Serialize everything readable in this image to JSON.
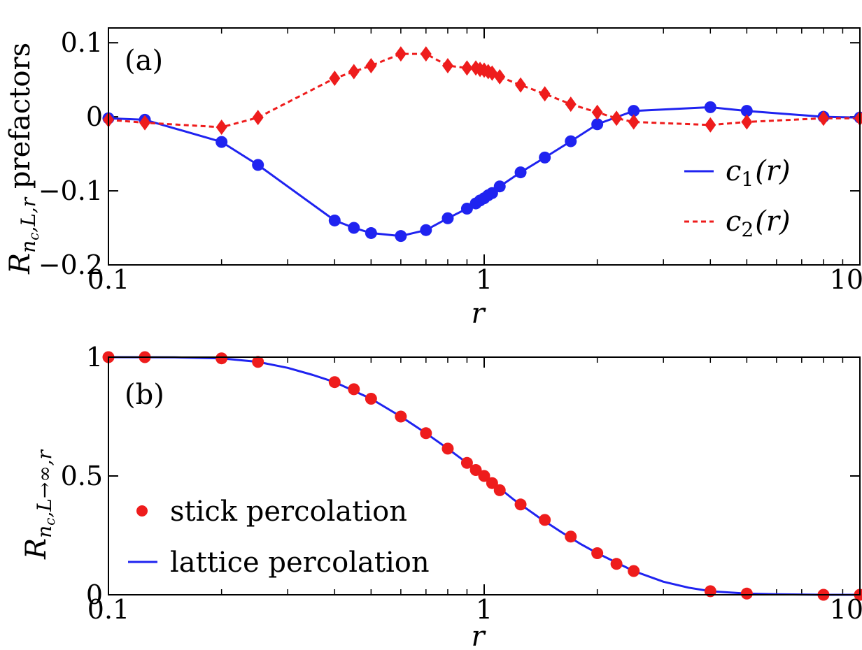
{
  "chart_data": [
    {
      "type": "line",
      "panel_label": "(a)",
      "xscale": "log",
      "xlim": [
        0.1,
        10
      ],
      "ylim": [
        -0.2,
        0.12
      ],
      "xlabel": "r",
      "ylabel": {
        "main": "R",
        "sub1": "n",
        "sub2": "c",
        "sub3": ",L,r",
        "suffix": " prefactors"
      },
      "x_ticks": [
        0.1,
        1,
        10
      ],
      "x_tick_labels": [
        "0.1",
        "1",
        "10"
      ],
      "y_ticks": [
        0.1,
        0,
        -0.1,
        -0.2
      ],
      "y_tick_labels": [
        "0.1",
        "0",
        "−0.1",
        "−0.2"
      ],
      "legend_position": "right",
      "series": [
        {
          "name": "c1(r)",
          "legend": {
            "base": "c",
            "sub": "1",
            "arg": "(r)"
          },
          "color": "#1f23f0",
          "line_style": "solid",
          "marker": "circle",
          "x": [
            0.1,
            0.125,
            0.2,
            0.25,
            0.4,
            0.45,
            0.5,
            0.6,
            0.7,
            0.8,
            0.9,
            0.95,
            0.975,
            1.0,
            1.025,
            1.05,
            1.1,
            1.25,
            1.45,
            1.7,
            2.0,
            2.5,
            4.0,
            5.0,
            8.0,
            10.0
          ],
          "y": [
            -0.002,
            -0.004,
            -0.034,
            -0.065,
            -0.14,
            -0.15,
            -0.157,
            -0.161,
            -0.153,
            -0.137,
            -0.124,
            -0.117,
            -0.113,
            -0.11,
            -0.106,
            -0.103,
            -0.094,
            -0.075,
            -0.055,
            -0.033,
            -0.01,
            0.008,
            0.013,
            0.008,
            0.0,
            -0.001
          ]
        },
        {
          "name": "c2(r)",
          "legend": {
            "base": "c",
            "sub": "2",
            "arg": "(r)"
          },
          "color": "#ee1c1c",
          "line_style": "dashed",
          "marker": "diamond",
          "x": [
            0.1,
            0.125,
            0.2,
            0.25,
            0.4,
            0.45,
            0.5,
            0.6,
            0.7,
            0.8,
            0.9,
            0.95,
            0.975,
            1.0,
            1.025,
            1.05,
            1.1,
            1.25,
            1.45,
            1.7,
            2.0,
            2.25,
            2.5,
            4.0,
            5.0,
            8.0,
            10.0
          ],
          "y": [
            -0.004,
            -0.008,
            -0.014,
            -0.001,
            0.052,
            0.061,
            0.069,
            0.085,
            0.085,
            0.069,
            0.066,
            0.066,
            0.064,
            0.063,
            0.061,
            0.059,
            0.054,
            0.043,
            0.031,
            0.017,
            0.006,
            -0.002,
            -0.007,
            -0.011,
            -0.007,
            -0.002,
            -0.002
          ]
        }
      ]
    },
    {
      "type": "line",
      "panel_label": "(b)",
      "xscale": "log",
      "xlim": [
        0.1,
        10
      ],
      "ylim": [
        0,
        1
      ],
      "xlabel": "r",
      "ylabel": {
        "main": "R",
        "sub1": "n",
        "sub2": "c",
        "sub3": ",L→∞,r",
        "suffix": ""
      },
      "x_ticks": [
        0.1,
        1,
        10
      ],
      "x_tick_labels": [
        "0.1",
        "1",
        "10"
      ],
      "y_ticks": [
        1,
        0.5,
        0
      ],
      "y_tick_labels": [
        "1",
        "0.5",
        "0"
      ],
      "legend_position": "lower-left",
      "series": [
        {
          "name": "stick percolation",
          "legend": "stick percolation",
          "color": "#ee1c1c",
          "line_style": "none",
          "marker": "circle",
          "x": [
            0.1,
            0.125,
            0.2,
            0.25,
            0.4,
            0.45,
            0.5,
            0.6,
            0.7,
            0.8,
            0.9,
            0.95,
            1.0,
            1.05,
            1.1,
            1.25,
            1.45,
            1.7,
            2.0,
            2.25,
            2.5,
            4.0,
            5.0,
            8.0,
            10.0
          ],
          "y": [
            1.0,
            1.0,
            0.995,
            0.98,
            0.895,
            0.865,
            0.825,
            0.75,
            0.68,
            0.615,
            0.555,
            0.525,
            0.5,
            0.47,
            0.44,
            0.38,
            0.315,
            0.245,
            0.175,
            0.13,
            0.1,
            0.015,
            0.005,
            0.0,
            0.0
          ]
        },
        {
          "name": "lattice percolation",
          "legend": "lattice percolation",
          "color": "#1f23f0",
          "line_style": "solid",
          "marker": "none",
          "x": [
            0.1,
            0.15,
            0.2,
            0.25,
            0.3,
            0.35,
            0.4,
            0.5,
            0.6,
            0.7,
            0.8,
            0.9,
            1.0,
            1.2,
            1.4,
            1.6,
            1.8,
            2.0,
            2.5,
            3.0,
            3.5,
            4.0,
            5.0,
            6.0,
            8.0,
            10.0
          ],
          "y": [
            1.0,
            0.999,
            0.995,
            0.98,
            0.955,
            0.925,
            0.895,
            0.825,
            0.75,
            0.68,
            0.615,
            0.555,
            0.5,
            0.4,
            0.325,
            0.265,
            0.215,
            0.175,
            0.1,
            0.055,
            0.03,
            0.015,
            0.005,
            0.002,
            0.0,
            0.0
          ]
        }
      ]
    }
  ]
}
